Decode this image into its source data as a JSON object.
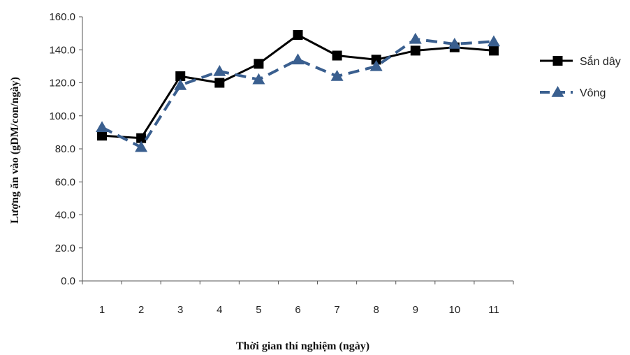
{
  "chart_data": {
    "type": "line",
    "title": "",
    "xlabel": "Thời gian thí nghiệm (ngày)",
    "ylabel": "Lượng ăn vào (gDM/con/ngày)",
    "x": [
      1,
      2,
      3,
      4,
      5,
      6,
      7,
      8,
      9,
      10,
      11
    ],
    "x_tick_labels": [
      "1",
      "2",
      "3",
      "4",
      "5",
      "6",
      "7",
      "8",
      "9",
      "10",
      "11"
    ],
    "ylim": [
      0,
      160
    ],
    "y_tick_labels": [
      "0.0",
      "20.0",
      "40.0",
      "60.0",
      "80.0",
      "100.0",
      "120.0",
      "140.0",
      "160.0"
    ],
    "grid": false,
    "legend_position": "right",
    "series": [
      {
        "name": "Sắn dây",
        "values": [
          88,
          86.5,
          124,
          120,
          131.5,
          149,
          136.5,
          134,
          139.5,
          141.5,
          139.5
        ],
        "color": "#000000",
        "line_style": "solid",
        "marker": "square"
      },
      {
        "name": "Vông",
        "values": [
          93,
          81,
          118.5,
          127,
          122,
          134,
          124,
          130,
          146.5,
          143.5,
          145
        ],
        "color": "#3a5f8f",
        "line_style": "dashed",
        "marker": "triangle"
      }
    ]
  }
}
